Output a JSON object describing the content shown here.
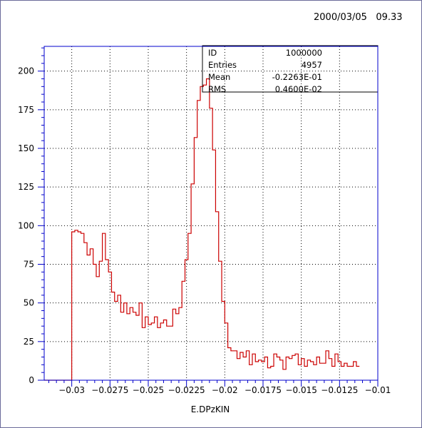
{
  "timestamp": "2000/03/05   09.33",
  "colors": {
    "frame": "#6b6b9a",
    "axes": "#0000cc",
    "histogram": "#cc0000",
    "grid": "#000000"
  },
  "stats_box": {
    "rows": [
      {
        "label": "ID",
        "value": "1000000"
      },
      {
        "label": "Entries",
        "value": "4957"
      },
      {
        "label": "Mean",
        "value": "-0.2263E-01"
      },
      {
        "label": "RMS",
        "value": "0.4600E-02"
      }
    ]
  },
  "chart_data": {
    "type": "histogram",
    "xlabel": "E.DPzKIN",
    "ylabel": "",
    "xlim": [
      -0.0318,
      -0.01
    ],
    "ylim": [
      0,
      216
    ],
    "grid": true,
    "x_ticks": [
      -0.03,
      -0.0275,
      -0.025,
      -0.0225,
      -0.02,
      -0.0175,
      -0.015,
      -0.0125,
      -0.01
    ],
    "x_tick_labels": [
      "−0.03",
      "−0.0275",
      "−0.025",
      "−0.0225",
      "−0.02",
      "−0.0175",
      "−0.015",
      "−0.0125",
      "−0.01"
    ],
    "y_ticks": [
      0,
      25,
      50,
      75,
      100,
      125,
      150,
      175,
      200
    ],
    "y_tick_labels": [
      "0",
      "25",
      "50",
      "75",
      "100",
      "125",
      "150",
      "175",
      "200"
    ],
    "bin_start": -0.0318,
    "bin_width": 0.0002,
    "values": [
      0,
      0,
      0,
      0,
      0,
      0,
      0,
      0,
      0,
      96,
      97,
      96,
      95,
      89,
      81,
      85,
      75,
      67,
      77,
      95,
      78,
      70,
      57,
      51,
      55,
      44,
      50,
      43,
      47,
      44,
      42,
      50,
      34,
      41,
      36,
      37,
      41,
      34,
      37,
      39,
      35,
      35,
      46,
      43,
      47,
      64,
      78,
      95,
      127,
      157,
      181,
      190,
      191,
      195,
      176,
      149,
      109,
      77,
      51,
      37,
      21,
      19,
      19,
      14,
      18,
      15,
      19,
      10,
      17,
      12,
      13,
      12,
      15,
      8,
      9,
      17,
      15,
      13,
      7,
      15,
      14,
      16,
      17,
      10,
      14,
      9,
      13,
      12,
      10,
      15,
      11,
      11,
      19,
      14,
      9,
      17,
      12,
      9,
      11,
      9,
      9,
      12,
      9
    ]
  }
}
